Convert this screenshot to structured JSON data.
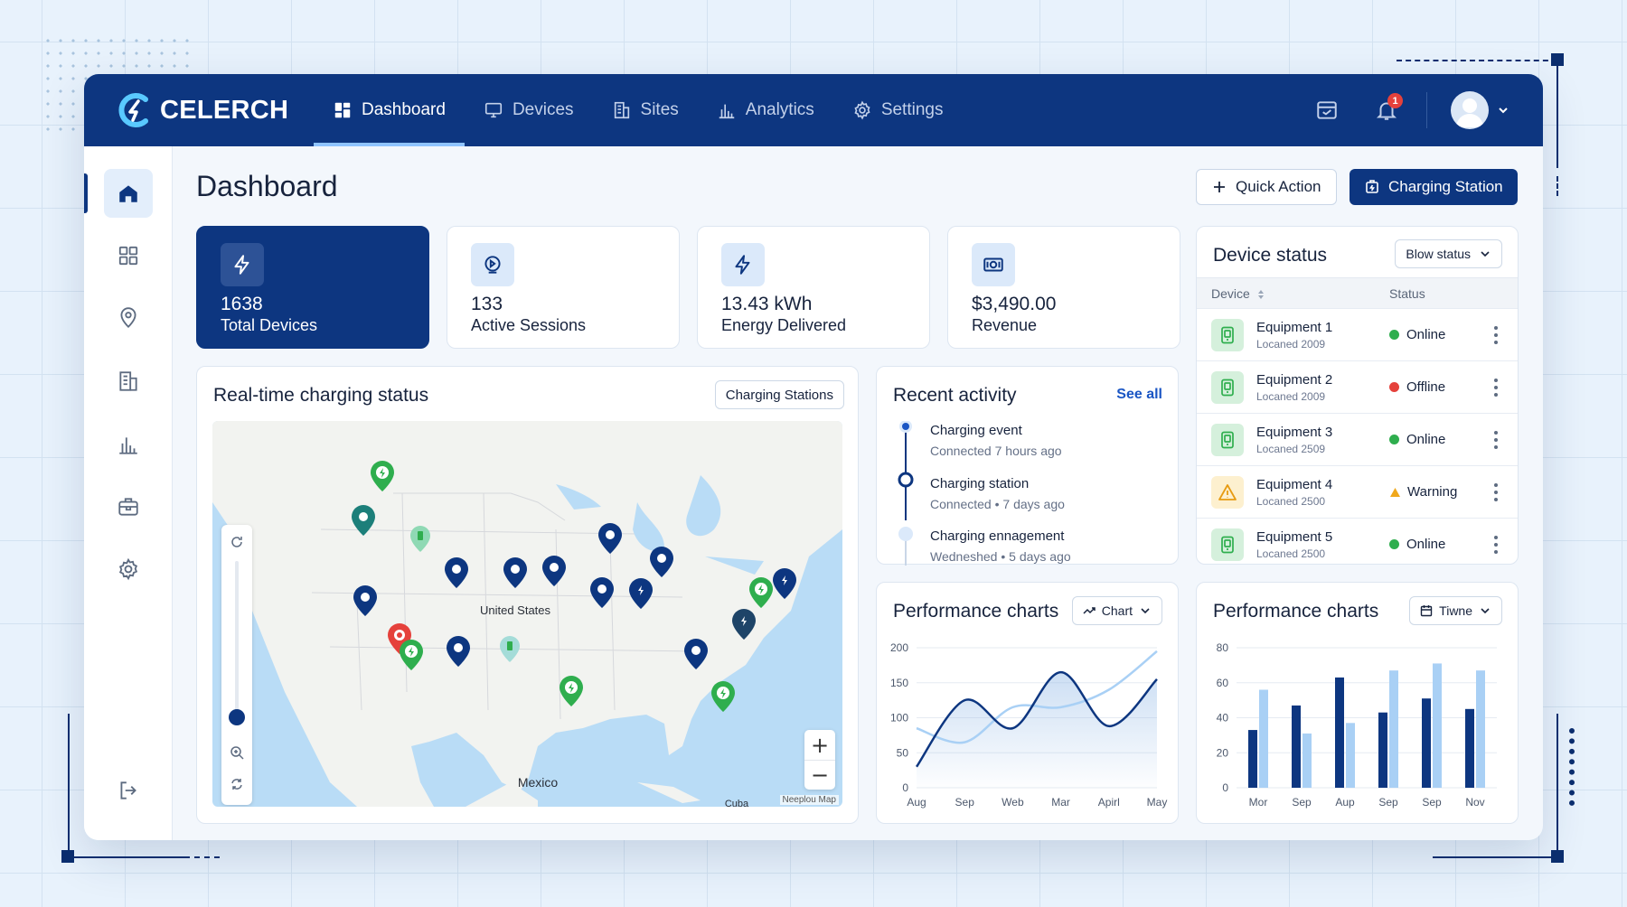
{
  "brand": {
    "name": "CELERCH"
  },
  "nav": {
    "items": [
      {
        "label": "Dashboard",
        "icon": "dashboard-icon",
        "active": true
      },
      {
        "label": "Devices",
        "icon": "monitor-icon",
        "active": false
      },
      {
        "label": "Sites",
        "icon": "building-icon",
        "active": false
      },
      {
        "label": "Analytics",
        "icon": "bar-chart-icon",
        "active": false
      },
      {
        "label": "Settings",
        "icon": "gear-icon",
        "active": false
      }
    ]
  },
  "header": {
    "notification_count": "1"
  },
  "sidebar": {
    "items": [
      {
        "icon": "home-icon",
        "active": true
      },
      {
        "icon": "grid-icon"
      },
      {
        "icon": "location-pin-icon"
      },
      {
        "icon": "building-icon"
      },
      {
        "icon": "bar-chart-icon"
      },
      {
        "icon": "toolbox-icon"
      },
      {
        "icon": "gear-icon"
      },
      {
        "icon": "logout-icon"
      }
    ]
  },
  "page": {
    "title": "Dashboard",
    "quick_action_label": "Quick Action",
    "charging_station_label": "Charging Station"
  },
  "stats": [
    {
      "value": "1638",
      "label": "Total Devices",
      "icon": "lightning-icon"
    },
    {
      "value": "133",
      "label": "Active Sessions",
      "icon": "play-circle-icon"
    },
    {
      "value": "13.43 kWh",
      "label": "Energy Delivered",
      "icon": "lightning-icon"
    },
    {
      "value": "$3,490.00",
      "label": "Revenue",
      "icon": "cash-icon"
    }
  ],
  "map": {
    "title": "Real-time charging status",
    "filter_label": "Charging Stations",
    "country_label": "United States",
    "mexico_label": "Mexico",
    "cuba_label": "Cuba",
    "credit": "Neeplou Map",
    "zoom_in": "+",
    "zoom_out": "−"
  },
  "activity": {
    "title": "Recent activity",
    "see_all": "See all",
    "items": [
      {
        "title": "Charging event",
        "subtitle": "Connected 7 hours ago"
      },
      {
        "title": "Charging station",
        "subtitle": "Connected • 7 days ago"
      },
      {
        "title": "Charging ennagement",
        "subtitle": "Wedneshed • 5 days ago"
      }
    ]
  },
  "device_status": {
    "title": "Device status",
    "filter_label": "Blow status",
    "col_device": "Device",
    "col_status": "Status",
    "rows": [
      {
        "name": "Equipment 1",
        "sub": "Locaned 2009",
        "status": "Online",
        "status_color": "#2fae4e",
        "kind": "ok"
      },
      {
        "name": "Equipment 2",
        "sub": "Locaned 2009",
        "status": "Offline",
        "status_color": "#e5413b",
        "kind": "ok"
      },
      {
        "name": "Equipment 3",
        "sub": "Locaned 2509",
        "status": "Online",
        "status_color": "#2fae4e",
        "kind": "ok"
      },
      {
        "name": "Equipment 4",
        "sub": "Locaned 2500",
        "status": "Warning",
        "status_color": "#f0a81c",
        "kind": "warn"
      },
      {
        "name": "Equipment 5",
        "sub": "Locaned 2500",
        "status": "Online",
        "status_color": "#2fae4e",
        "kind": "ok"
      }
    ]
  },
  "perf_line": {
    "title": "Performance charts",
    "filter_label": "Chart"
  },
  "perf_bar": {
    "title": "Performance charts",
    "filter_label": "Tiwne"
  },
  "colors": {
    "primary": "#0d3680",
    "accent": "#8fc4ff",
    "light_series": "#a9d0f5",
    "dark_series": "#0d3680"
  },
  "chart_data": [
    {
      "type": "line",
      "categories": [
        "Aug",
        "Sep",
        "Web",
        "Mar",
        "Apirl",
        "May"
      ],
      "ylim": [
        0,
        200
      ],
      "yticks": [
        0,
        50,
        100,
        150,
        200
      ],
      "series": [
        {
          "values": [
            30,
            125,
            85,
            165,
            88,
            155
          ]
        },
        {
          "values": [
            85,
            65,
            115,
            115,
            140,
            195
          ]
        }
      ]
    },
    {
      "type": "bar",
      "categories": [
        "Mor",
        "Sep",
        "Aup",
        "Sep",
        "Sep",
        "Nov"
      ],
      "ylim": [
        0,
        80
      ],
      "yticks": [
        0,
        20,
        40,
        60,
        80
      ],
      "series": [
        {
          "values": [
            33,
            47,
            63,
            43,
            51,
            45
          ]
        },
        {
          "values": [
            56,
            31,
            37,
            67,
            71,
            67
          ]
        }
      ]
    }
  ]
}
